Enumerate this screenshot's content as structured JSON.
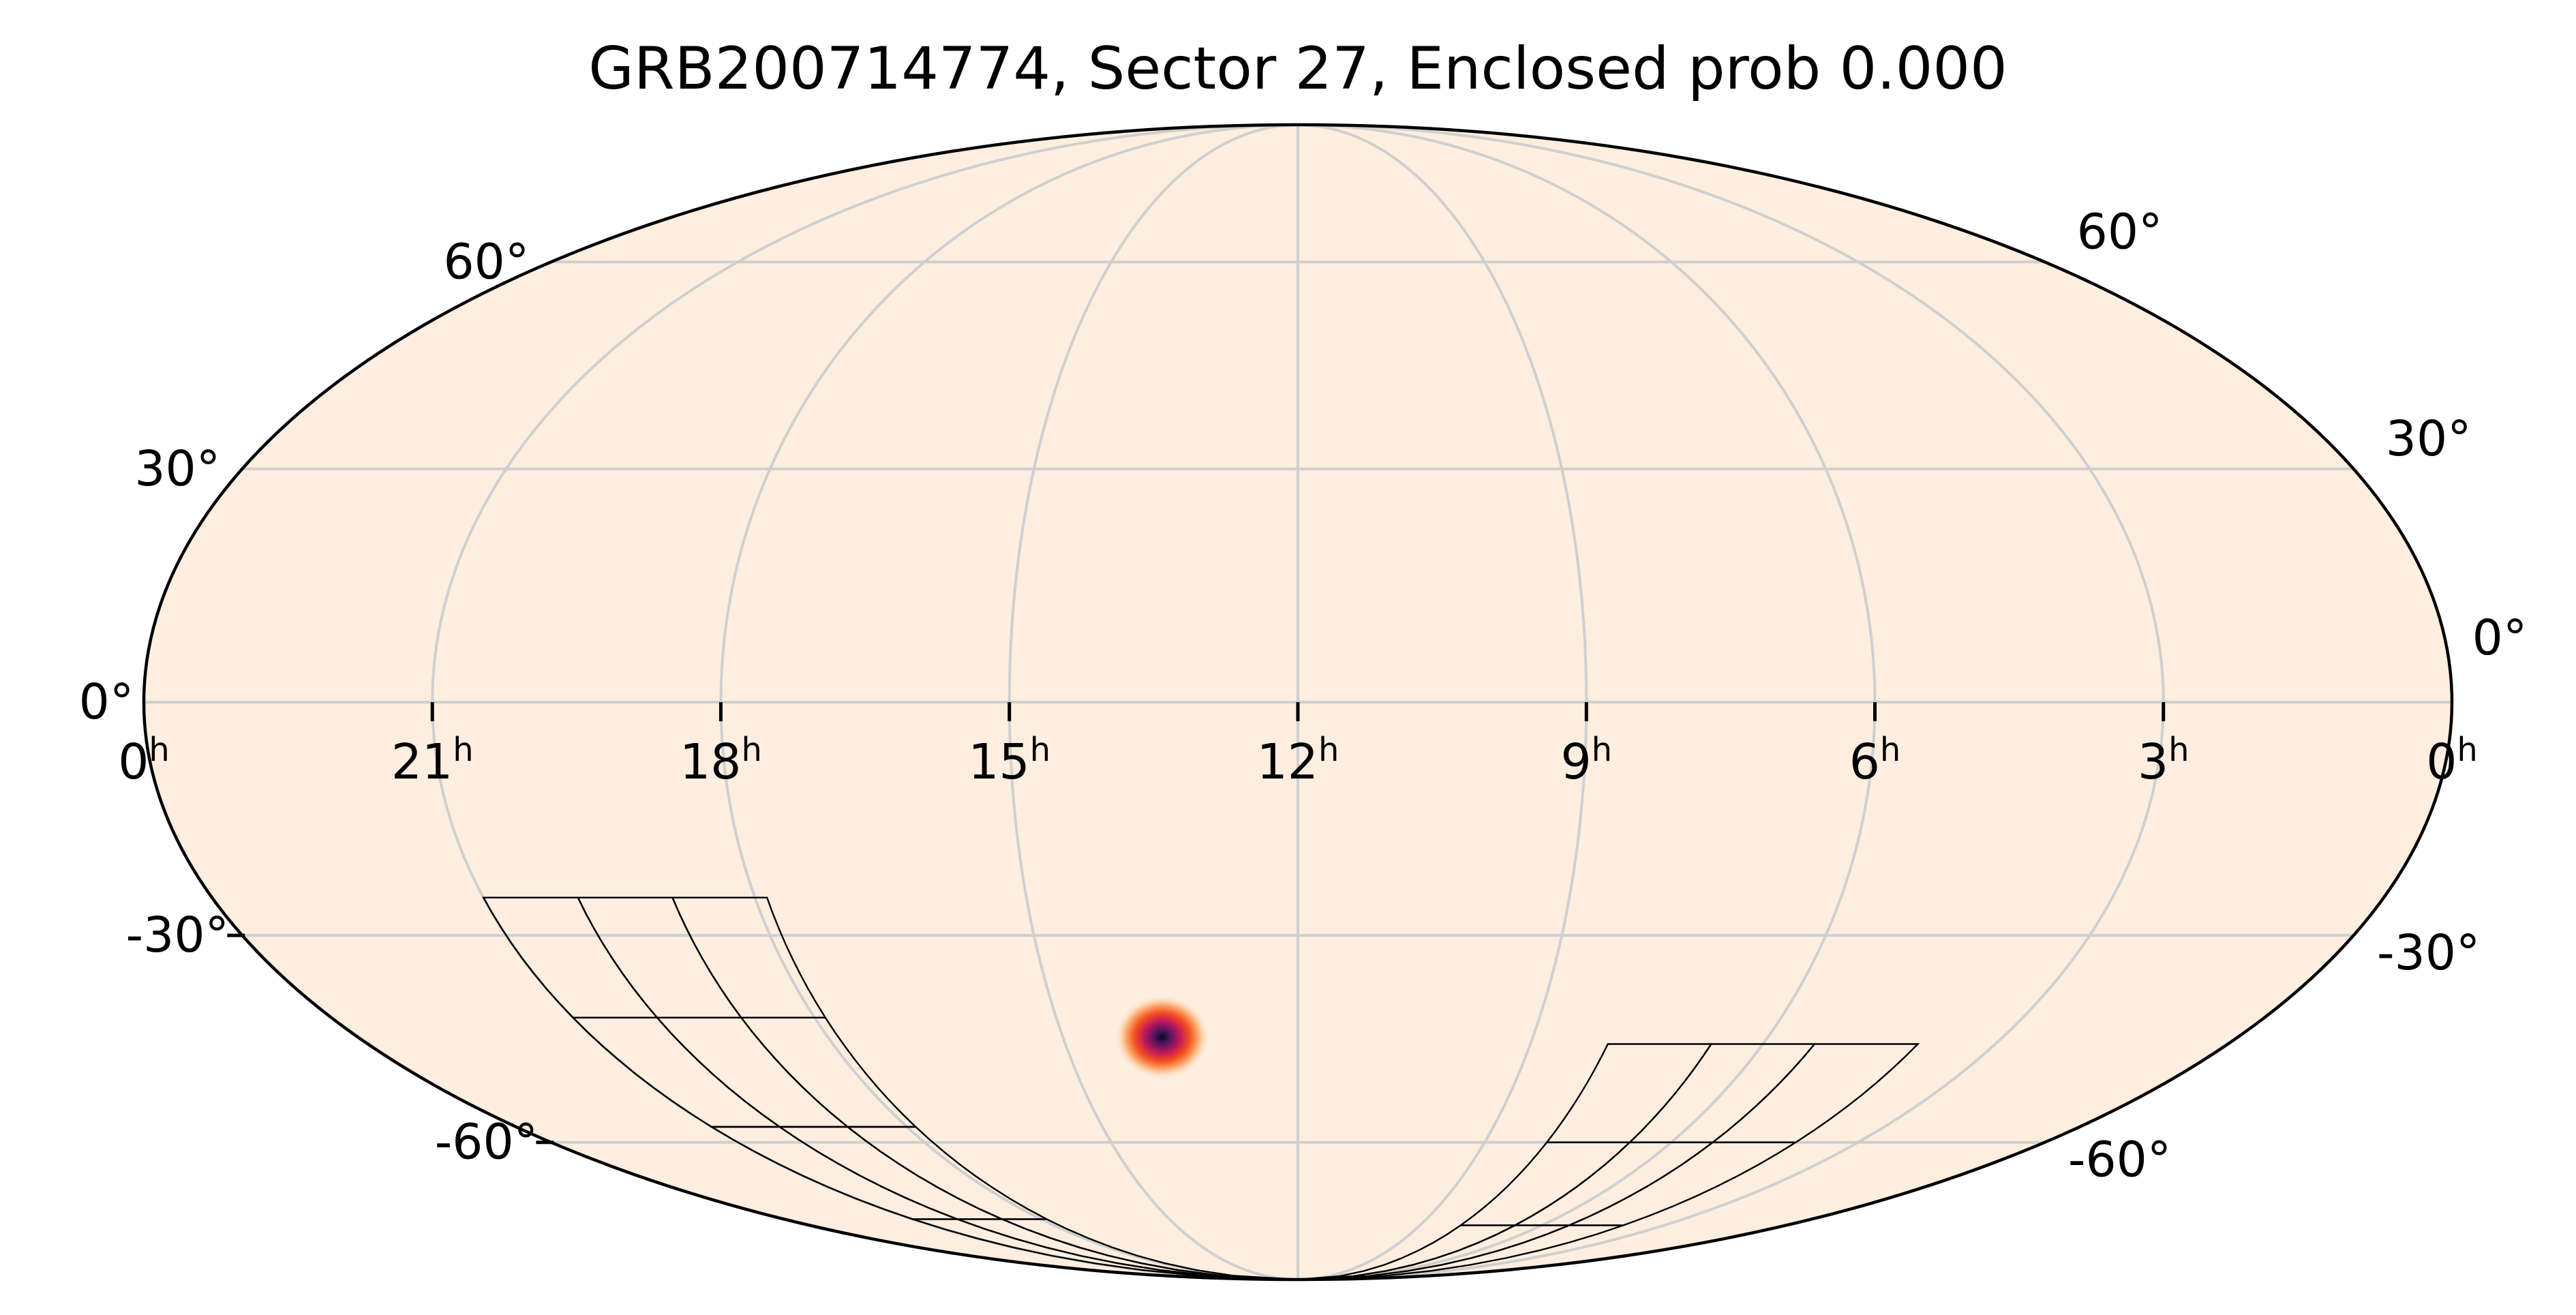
{
  "chart_data": {
    "type": "heatmap",
    "projection": "mollweide",
    "title": "GRB200714774, Sector 27, Enclosed prob 0.000",
    "ra_ticks": [
      {
        "hours": 0,
        "label": "0",
        "sup": "h",
        "end": "left"
      },
      {
        "hours": 21,
        "label": "21",
        "sup": "h"
      },
      {
        "hours": 18,
        "label": "18",
        "sup": "h"
      },
      {
        "hours": 15,
        "label": "15",
        "sup": "h"
      },
      {
        "hours": 12,
        "label": "12",
        "sup": "h"
      },
      {
        "hours": 9,
        "label": "9",
        "sup": "h"
      },
      {
        "hours": 6,
        "label": "6",
        "sup": "h"
      },
      {
        "hours": 3,
        "label": "3",
        "sup": "h"
      },
      {
        "hours": 0,
        "label": "0",
        "sup": "h",
        "end": "right"
      }
    ],
    "dec_ticks_left": [
      "60°",
      "30°",
      "0°",
      "-30°",
      "-60°"
    ],
    "dec_ticks_right": [
      "60°",
      "30°",
      "0°",
      "-30°",
      "-60°"
    ],
    "dec_tick_values": [
      60,
      30,
      0,
      -30,
      -60
    ],
    "ra_gridlines_deg": [
      45,
      90,
      135,
      180,
      225,
      270,
      315
    ],
    "dec_gridlines_deg": [
      60,
      30,
      0,
      -30,
      -60
    ],
    "grid": true,
    "colormap": "magma_r",
    "probability_peak": {
      "ra_deg": 206,
      "dec_deg": -44
    },
    "background_color": "#fdeee0",
    "coverage_regions": [
      {
        "name": "tess-footprint-left",
        "ra_range_deg": [
          268,
          315
        ],
        "dec_range_deg": [
          -90,
          -25
        ]
      },
      {
        "name": "tess-footprint-right",
        "ra_range_deg": [
          60,
          120
        ],
        "dec_range_deg": [
          -90,
          -45
        ]
      }
    ]
  }
}
